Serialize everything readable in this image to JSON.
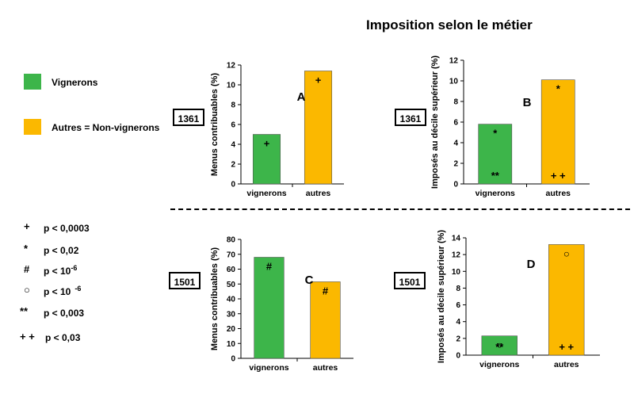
{
  "title": "Imposition selon le métier",
  "legend": [
    {
      "label": "Vignerons",
      "color": "#3db54a"
    },
    {
      "label": "Autres = Non-vignerons",
      "color": "#fbb800"
    }
  ],
  "significance": [
    {
      "symbol": "+",
      "text": "p < 0,0003",
      "exp": ""
    },
    {
      "symbol": "*",
      "text": "p < 0,02",
      "exp": ""
    },
    {
      "symbol": "#",
      "text": "p < 10",
      "exp": "-6"
    },
    {
      "symbol": "○",
      "text": "p < 10",
      "exp": "-6"
    },
    {
      "symbol": "**",
      "text": "p < 0,003",
      "exp": ""
    },
    {
      "symbol": "+ +",
      "text": "p < 0,03",
      "exp": ""
    }
  ],
  "years": {
    "top": "1361",
    "bottom": "1501"
  },
  "colors": {
    "vignerons": "#3db54a",
    "autres": "#fbb800"
  },
  "chart_data": [
    {
      "type": "bar",
      "panel": "A",
      "year": "1361",
      "categories": [
        "vignerons",
        "autres"
      ],
      "values": [
        5.0,
        11.4
      ],
      "ylabel": "Menus contribuables (%)",
      "ylim": [
        0,
        12
      ],
      "yticks": [
        0,
        2,
        4,
        6,
        8,
        10,
        12
      ],
      "marks": [
        [
          "+"
        ],
        [
          "+"
        ]
      ]
    },
    {
      "type": "bar",
      "panel": "B",
      "year": "1361",
      "categories": [
        "vignerons",
        "autres"
      ],
      "values": [
        5.8,
        10.1
      ],
      "ylabel": "Imposés au décile supérieur (%)",
      "ylim": [
        0,
        12
      ],
      "yticks": [
        0,
        2,
        4,
        6,
        8,
        10,
        12
      ],
      "marks": [
        [
          "*",
          "**"
        ],
        [
          "*",
          "+ +"
        ]
      ]
    },
    {
      "type": "bar",
      "panel": "C",
      "year": "1501",
      "categories": [
        "vignerons",
        "autres"
      ],
      "values": [
        68,
        51.5
      ],
      "ylabel": "Menus contribuables (%)",
      "ylim": [
        0,
        80
      ],
      "yticks": [
        0,
        10,
        20,
        30,
        40,
        50,
        60,
        70,
        80
      ],
      "marks": [
        [
          "#"
        ],
        [
          "#"
        ]
      ]
    },
    {
      "type": "bar",
      "panel": "D",
      "year": "1501",
      "categories": [
        "vignerons",
        "autres"
      ],
      "values": [
        2.3,
        13.2
      ],
      "ylabel": "Imposés au décile supérieur (%)",
      "ylim": [
        0,
        14
      ],
      "yticks": [
        0,
        2,
        4,
        6,
        8,
        10,
        12,
        14
      ],
      "marks": [
        [
          "○",
          "**"
        ],
        [
          "○",
          "+ +"
        ]
      ]
    }
  ]
}
